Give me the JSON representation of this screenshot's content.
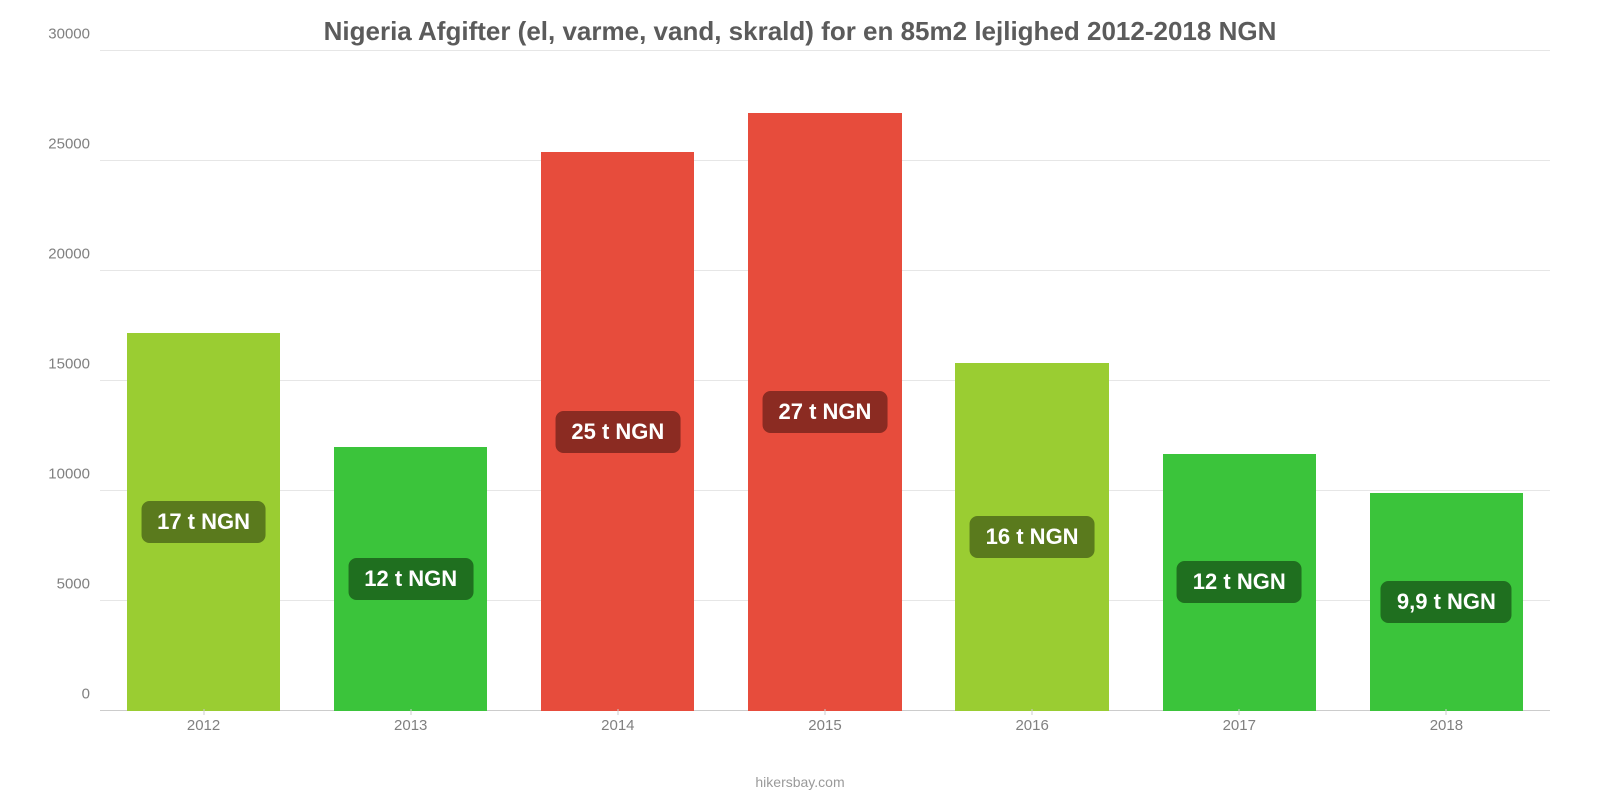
{
  "chart": {
    "type": "bar",
    "title": "Nigeria Afgifter (el, varme, vand, skrald) for en 85m2 lejlighed 2012-2018 NGN",
    "title_fontsize": 26,
    "title_color": "#5b5b5b",
    "attribution": "hikersbay.com",
    "background_color": "#ffffff",
    "grid_color": "#e6e6e6",
    "axis_text_color": "#808080",
    "label_fontsize": 15,
    "bar_label_fontsize": 22,
    "bar_width_ratio": 0.74,
    "ylim": [
      0,
      30000
    ],
    "ytick_step": 5000,
    "yticks": [
      {
        "value": 0,
        "label": "0"
      },
      {
        "value": 5000,
        "label": "5000"
      },
      {
        "value": 10000,
        "label": "10000"
      },
      {
        "value": 15000,
        "label": "15000"
      },
      {
        "value": 20000,
        "label": "20000"
      },
      {
        "value": 25000,
        "label": "25000"
      },
      {
        "value": 30000,
        "label": "30000"
      }
    ],
    "categories": [
      "2012",
      "2013",
      "2014",
      "2015",
      "2016",
      "2017",
      "2018"
    ],
    "bars": [
      {
        "value": 17200,
        "label": "17 t NGN",
        "bar_color": "#9acd32",
        "label_bg": "#5a7a1d"
      },
      {
        "value": 12000,
        "label": "12 t NGN",
        "bar_color": "#3bc43b",
        "label_bg": "#1f6f1f"
      },
      {
        "value": 25400,
        "label": "25 t NGN",
        "bar_color": "#e74c3c",
        "label_bg": "#8b2b22"
      },
      {
        "value": 27200,
        "label": "27 t NGN",
        "bar_color": "#e74c3c",
        "label_bg": "#8b2b22"
      },
      {
        "value": 15800,
        "label": "16 t NGN",
        "bar_color": "#9acd32",
        "label_bg": "#5a7a1d"
      },
      {
        "value": 11700,
        "label": "12 t NGN",
        "bar_color": "#3bc43b",
        "label_bg": "#1f6f1f"
      },
      {
        "value": 9900,
        "label": "9,9 t NGN",
        "bar_color": "#3bc43b",
        "label_bg": "#1f6f1f"
      }
    ]
  }
}
